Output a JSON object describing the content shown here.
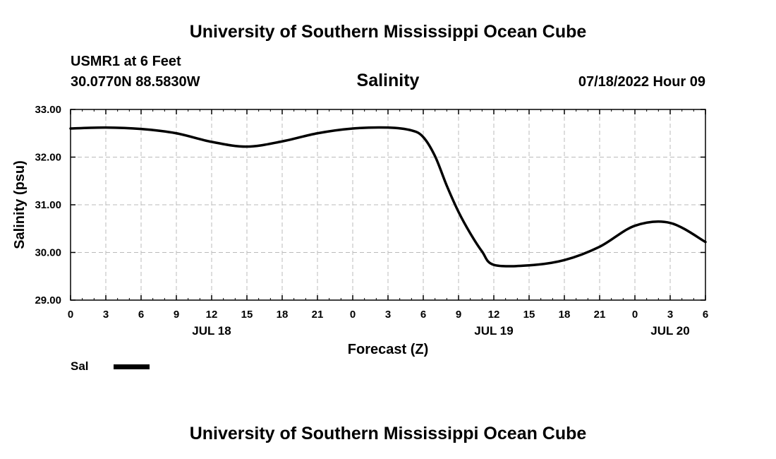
{
  "header": {
    "main_title": "University of Southern Mississippi Ocean Cube",
    "station": "USMR1 at 6 Feet",
    "coords": "30.0770N  88.5830W",
    "timestamp": "07/18/2022 Hour 09",
    "footer_title": "University of Southern Mississippi Ocean Cube"
  },
  "chart_data": {
    "type": "line",
    "title": "Salinity",
    "xlabel": "Forecast (Z)",
    "ylabel": "Salinity (psu)",
    "ylim": [
      29.0,
      33.0
    ],
    "yticks": [
      "29.00",
      "30.00",
      "31.00",
      "32.00",
      "33.00"
    ],
    "xlim": [
      0,
      54
    ],
    "xtick_labels": [
      "0",
      "3",
      "6",
      "9",
      "12",
      "15",
      "18",
      "21",
      "0",
      "3",
      "6",
      "9",
      "12",
      "15",
      "18",
      "21",
      "0",
      "3",
      "6"
    ],
    "date_labels": [
      {
        "label": "JUL 18",
        "hour": 12
      },
      {
        "label": "JUL 19",
        "hour": 36
      },
      {
        "label": "JUL 20",
        "hour": 51
      }
    ],
    "grid": true,
    "legend": {
      "position": "bottom-left",
      "entries": [
        "Sal"
      ]
    },
    "series": [
      {
        "name": "Sal",
        "color": "#000000",
        "x": [
          0,
          3,
          6,
          9,
          12,
          15,
          18,
          21,
          24,
          27,
          29,
          30,
          31,
          32,
          33,
          34,
          35,
          36,
          39,
          42,
          45,
          48,
          51,
          54
        ],
        "values": [
          32.6,
          32.62,
          32.59,
          32.5,
          32.32,
          32.22,
          32.33,
          32.5,
          32.6,
          32.62,
          32.56,
          32.42,
          32.02,
          31.4,
          30.85,
          30.4,
          30.02,
          29.74,
          29.73,
          29.84,
          30.12,
          30.56,
          30.62,
          30.22
        ]
      }
    ]
  }
}
